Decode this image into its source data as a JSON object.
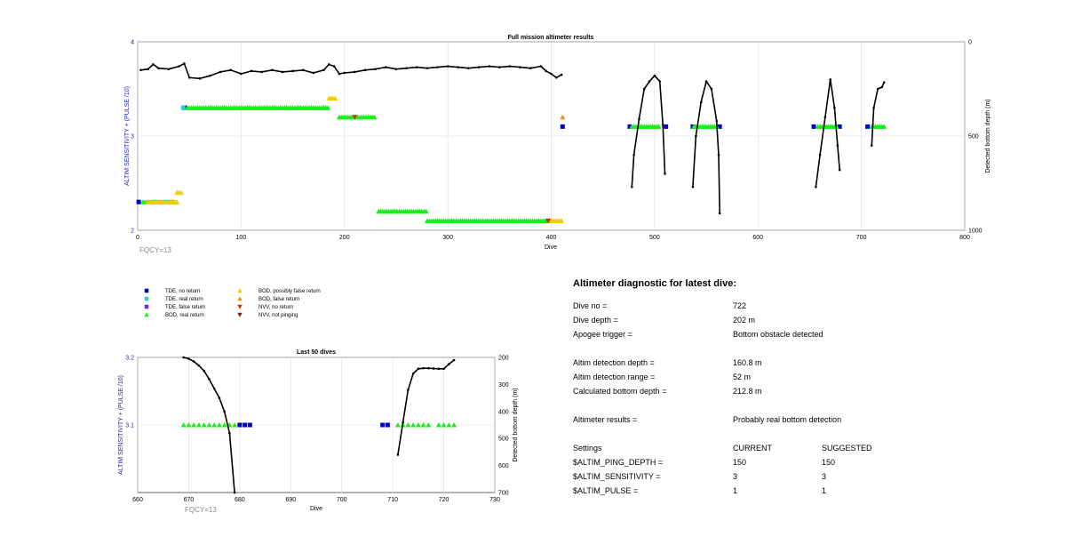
{
  "charts": {
    "top": {
      "title": "Full mission altimeter results",
      "xlabel": "Dive",
      "ylabel_left": "ALTIM SENSITIVITY + (PULSE /10)",
      "ylabel_right": "Detected bottom depth (m)",
      "xticks": [
        "0",
        "100",
        "200",
        "300",
        "400",
        "500",
        "600",
        "700",
        "800"
      ],
      "yticks_left": [
        "2",
        "3",
        "4"
      ],
      "yticks_right": [
        "0",
        "500",
        "1000"
      ],
      "footnote": "FQCY=13"
    },
    "bottom": {
      "title": "Last 50 dives",
      "xlabel": "Dive",
      "ylabel_left": "ALTIM SENSITIVITY + (PULSE /10)",
      "ylabel_right": "Detected bottom depth (m)",
      "xticks": [
        "660",
        "670",
        "680",
        "690",
        "700",
        "710",
        "720",
        "730"
      ],
      "yticks_left": [
        "3.1",
        "3.2"
      ],
      "yticks_right": [
        "200",
        "300",
        "400",
        "500",
        "600",
        "700"
      ],
      "footnote": "FQCY=13"
    }
  },
  "legend": {
    "items": [
      {
        "label": "TDE, no return",
        "symbol": "square",
        "color": "#0000cc"
      },
      {
        "label": "TDE, real return",
        "symbol": "square",
        "color": "#33cccc"
      },
      {
        "label": "TDE, false return",
        "symbol": "square",
        "color": "#6633cc"
      },
      {
        "label": "BOD, real return",
        "symbol": "triangle-up",
        "color": "#1aee1a"
      },
      {
        "label": "BOD, possibly false return",
        "symbol": "triangle-up",
        "color": "#f0cc00"
      },
      {
        "label": "BOD, false return",
        "symbol": "triangle-up",
        "color": "#f09010"
      },
      {
        "label": "NVV, no return",
        "symbol": "triangle-down",
        "color": "#cc3300"
      },
      {
        "label": "NVV, not pinging",
        "symbol": "triangle-down",
        "color": "#7a1a00"
      }
    ]
  },
  "diagnostic": {
    "title": "Altimeter diagnostic for latest dive:",
    "dive_no_label": "Dive no =",
    "dive_no": "722",
    "dive_depth_label": "Dive depth =",
    "dive_depth": "202 m",
    "apogee_label": "Apogee trigger =",
    "apogee": "Bottom obstacle detected",
    "det_depth_label": "Altim detection depth =",
    "det_depth": "160.8 m",
    "det_range_label": "Altim detection range =",
    "det_range": "52 m",
    "calc_depth_label": "Calculated bottom depth =",
    "calc_depth": "212.8 m",
    "results_label": "Altimeter results =",
    "results": "Probably real bottom detection",
    "settings_label": "Settings",
    "current_label": "CURRENT",
    "suggested_label": "SUGGESTED",
    "ping_label": "$ALTIM_PING_DEPTH =",
    "ping_current": "150",
    "ping_suggested": "150",
    "sens_label": "$ALTIM_SENSITIVITY =",
    "sens_current": "3",
    "sens_suggested": "3",
    "pulse_label": "$ALTIM_PULSE =",
    "pulse_current": "1",
    "pulse_suggested": "1"
  },
  "chart_data": [
    {
      "type": "scatter",
      "title": "Full mission altimeter results",
      "xlabel": "Dive",
      "ylabel": "ALTIM SENSITIVITY + (PULSE /10)",
      "ylabel_right": "Detected bottom depth (m)",
      "xlim": [
        0,
        800
      ],
      "ylim": [
        2,
        4
      ],
      "ylim_right": [
        1000,
        0
      ],
      "grid": true,
      "series": [
        {
          "name": "TDE, no return",
          "points": [
            [
              1,
              2.3
            ],
            [
              46,
              3.3
            ],
            [
              411,
              3.1
            ],
            [
              476,
              3.1
            ],
            [
              511,
              3.1
            ],
            [
              537,
              3.1
            ],
            [
              563,
              3.1
            ],
            [
              654,
              3.1
            ],
            [
              679,
              3.1
            ],
            [
              706,
              3.1
            ]
          ]
        },
        {
          "name": "TDE, real return",
          "points": [
            [
              44,
              3.3
            ]
          ]
        },
        {
          "name": "BOD, real return",
          "segments": [
            [
              [
                5,
                2.3
              ],
              [
                35,
                2.3
              ]
            ],
            [
              [
                48,
                3.3
              ],
              [
                185,
                3.3
              ]
            ],
            [
              [
                195,
                3.2
              ],
              [
                230,
                3.2
              ]
            ],
            [
              [
                233,
                2.2
              ],
              [
                280,
                2.2
              ]
            ],
            [
              [
                280,
                2.1
              ],
              [
                400,
                2.1
              ]
            ],
            [
              [
                478,
                3.1
              ],
              [
                505,
                3.1
              ]
            ],
            [
              [
                538,
                3.1
              ],
              [
                560,
                3.1
              ]
            ],
            [
              [
                658,
                3.1
              ],
              [
                676,
                3.1
              ]
            ],
            [
              [
                710,
                3.1
              ],
              [
                722,
                3.1
              ]
            ]
          ]
        },
        {
          "name": "BOD, possibly false return",
          "segments": [
            [
              [
                10,
                2.3
              ],
              [
                38,
                2.3
              ]
            ],
            [
              [
                38,
                2.4
              ],
              [
                42,
                2.4
              ]
            ],
            [
              [
                185,
                3.4
              ],
              [
                192,
                3.4
              ]
            ],
            [
              [
                400,
                2.1
              ],
              [
                410,
                2.1
              ]
            ]
          ]
        },
        {
          "name": "BOD, false return",
          "points": [
            [
              411,
              3.2
            ]
          ]
        },
        {
          "name": "NVV, no return",
          "points": [
            [
              210,
              3.2
            ],
            [
              397,
              2.1
            ]
          ]
        },
        {
          "name": "Detected bottom depth (m)",
          "axis": "right",
          "lines": [
            [
              [
                3,
                150
              ],
              [
                10,
                145
              ],
              [
                15,
                120
              ],
              [
                20,
                140
              ],
              [
                30,
                145
              ],
              [
                40,
                130
              ],
              [
                45,
                115
              ],
              [
                50,
                190
              ],
              [
                60,
                195
              ],
              [
                70,
                180
              ],
              [
                80,
                160
              ],
              [
                90,
                150
              ],
              [
                100,
                170
              ],
              [
                110,
                155
              ],
              [
                120,
                160
              ],
              [
                130,
                150
              ],
              [
                140,
                160
              ],
              [
                150,
                155
              ],
              [
                160,
                150
              ],
              [
                170,
                165
              ],
              [
                180,
                150
              ],
              [
                185,
                120
              ],
              [
                190,
                130
              ],
              [
                195,
                170
              ],
              [
                200,
                165
              ],
              [
                210,
                160
              ],
              [
                220,
                150
              ],
              [
                230,
                145
              ],
              [
                240,
                135
              ],
              [
                250,
                145
              ],
              [
                260,
                140
              ],
              [
                270,
                135
              ],
              [
                280,
                140
              ],
              [
                290,
                135
              ],
              [
                300,
                130
              ],
              [
                310,
                135
              ],
              [
                320,
                140
              ],
              [
                330,
                135
              ],
              [
                340,
                130
              ],
              [
                350,
                135
              ],
              [
                360,
                130
              ],
              [
                370,
                135
              ],
              [
                380,
                140
              ],
              [
                390,
                130
              ],
              [
                395,
                155
              ],
              [
                400,
                170
              ],
              [
                405,
                190
              ],
              [
                410,
                175
              ]
            ],
            [
              [
                478,
                770
              ],
              [
                480,
                600
              ],
              [
                485,
                410
              ],
              [
                490,
                250
              ],
              [
                495,
                210
              ],
              [
                500,
                180
              ],
              [
                505,
                210
              ],
              [
                508,
                440
              ],
              [
                510,
                700
              ]
            ],
            [
              [
                537,
                770
              ],
              [
                540,
                500
              ],
              [
                545,
                320
              ],
              [
                550,
                210
              ],
              [
                555,
                250
              ],
              [
                560,
                420
              ],
              [
                562,
                600
              ],
              [
                563,
                910
              ]
            ],
            [
              [
                656,
                770
              ],
              [
                660,
                600
              ],
              [
                665,
                400
              ],
              [
                670,
                200
              ],
              [
                674,
                350
              ],
              [
                677,
                550
              ],
              [
                679,
                680
              ]
            ],
            [
              [
                710,
                550
              ],
              [
                712,
                350
              ],
              [
                716,
                250
              ],
              [
                720,
                240
              ],
              [
                722,
                215
              ]
            ]
          ]
        }
      ]
    },
    {
      "type": "scatter",
      "title": "Last 50 dives",
      "xlabel": "Dive",
      "ylabel": "ALTIM SENSITIVITY + (PULSE /10)",
      "ylabel_right": "Detected bottom depth (m)",
      "xlim": [
        660,
        730
      ],
      "ylim": [
        3.0,
        3.2
      ],
      "ylim_right": [
        700,
        200
      ],
      "grid": true,
      "series": [
        {
          "name": "TDE, no return",
          "points": [
            [
              680,
              3.1
            ],
            [
              681,
              3.1
            ],
            [
              682,
              3.1
            ],
            [
              708,
              3.1
            ],
            [
              709,
              3.1
            ]
          ]
        },
        {
          "name": "BOD, real return",
          "points": [
            [
              669,
              3.1
            ],
            [
              670,
              3.1
            ],
            [
              671,
              3.1
            ],
            [
              672,
              3.1
            ],
            [
              673,
              3.1
            ],
            [
              674,
              3.1
            ],
            [
              675,
              3.1
            ],
            [
              676,
              3.1
            ],
            [
              677,
              3.1
            ],
            [
              678,
              3.1
            ],
            [
              679,
              3.1
            ],
            [
              711,
              3.1
            ],
            [
              712,
              3.1
            ],
            [
              713,
              3.1
            ],
            [
              714,
              3.1
            ],
            [
              715,
              3.1
            ],
            [
              716,
              3.1
            ],
            [
              717,
              3.1
            ],
            [
              719,
              3.1
            ],
            [
              720,
              3.1
            ],
            [
              721,
              3.1
            ],
            [
              722,
              3.1
            ]
          ]
        },
        {
          "name": "Detected bottom depth (m)",
          "axis": "right",
          "lines": [
            [
              [
                669,
                200
              ],
              [
                670,
                205
              ],
              [
                671,
                215
              ],
              [
                672,
                230
              ],
              [
                673,
                250
              ],
              [
                674,
                280
              ],
              [
                675,
                315
              ],
              [
                676,
                350
              ],
              [
                677,
                400
              ],
              [
                678,
                480
              ],
              [
                679,
                700
              ]
            ],
            [
              [
                711,
                560
              ],
              [
                712,
                440
              ],
              [
                713,
                320
              ],
              [
                714,
                260
              ],
              [
                715,
                242
              ],
              [
                716,
                240
              ],
              [
                717,
                240
              ],
              [
                718,
                241
              ],
              [
                719,
                242
              ],
              [
                720,
                242
              ],
              [
                721,
                225
              ],
              [
                722,
                210
              ]
            ]
          ]
        }
      ]
    }
  ]
}
